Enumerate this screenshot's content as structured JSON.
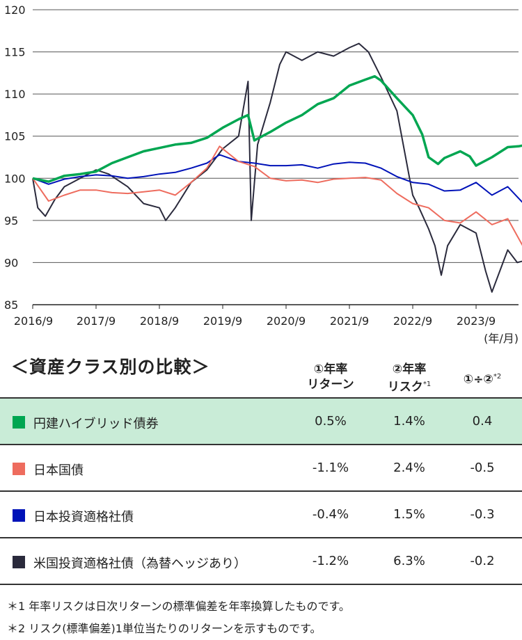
{
  "chart_data": {
    "type": "line",
    "x_ticks": [
      "2016/9",
      "2017/9",
      "2018/9",
      "2019/9",
      "2020/9",
      "2021/9",
      "2022/9",
      "2023/9"
    ],
    "x_unit_label": "(年/月)",
    "y_ticks": [
      85,
      90,
      95,
      100,
      105,
      110,
      115,
      120
    ],
    "ylim": [
      85,
      120
    ],
    "xlim": [
      "2016/9",
      "2024/5"
    ],
    "grid": "horizontal",
    "series": [
      {
        "name": "円建ハイブリッド債券",
        "color": "#00a651",
        "points": [
          [
            0,
            100
          ],
          [
            0.25,
            99.6
          ],
          [
            0.5,
            100.3
          ],
          [
            0.75,
            100.5
          ],
          [
            1,
            100.8
          ],
          [
            1.25,
            101.8
          ],
          [
            1.5,
            102.5
          ],
          [
            1.75,
            103.2
          ],
          [
            2,
            103.6
          ],
          [
            2.25,
            104
          ],
          [
            2.5,
            104.2
          ],
          [
            2.75,
            104.8
          ],
          [
            3,
            106
          ],
          [
            3.25,
            107
          ],
          [
            3.4,
            107.5
          ],
          [
            3.5,
            104.5
          ],
          [
            3.75,
            105.5
          ],
          [
            4,
            106.6
          ],
          [
            4.25,
            107.5
          ],
          [
            4.5,
            108.8
          ],
          [
            4.75,
            109.5
          ],
          [
            5,
            111
          ],
          [
            5.25,
            111.7
          ],
          [
            5.4,
            112.1
          ],
          [
            5.5,
            111.6
          ],
          [
            5.75,
            109.5
          ],
          [
            6,
            107.5
          ],
          [
            6.15,
            105.2
          ],
          [
            6.25,
            102.5
          ],
          [
            6.4,
            101.7
          ],
          [
            6.5,
            102.4
          ],
          [
            6.75,
            103.2
          ],
          [
            6.9,
            102.6
          ],
          [
            7,
            101.5
          ],
          [
            7.25,
            102.5
          ],
          [
            7.5,
            103.7
          ],
          [
            7.67,
            103.8
          ],
          [
            7.75,
            103.9
          ]
        ]
      },
      {
        "name": "日本国債",
        "color": "#ee6c5e",
        "points": [
          [
            0,
            100
          ],
          [
            0.25,
            97.3
          ],
          [
            0.5,
            98
          ],
          [
            0.75,
            98.6
          ],
          [
            1,
            98.6
          ],
          [
            1.25,
            98.3
          ],
          [
            1.5,
            98.2
          ],
          [
            1.75,
            98.4
          ],
          [
            2,
            98.6
          ],
          [
            2.25,
            98
          ],
          [
            2.5,
            99.5
          ],
          [
            2.75,
            101.2
          ],
          [
            2.95,
            103.8
          ],
          [
            3.25,
            102
          ],
          [
            3.5,
            101.4
          ],
          [
            3.75,
            100
          ],
          [
            4,
            99.7
          ],
          [
            4.25,
            99.8
          ],
          [
            4.5,
            99.5
          ],
          [
            4.75,
            99.9
          ],
          [
            5,
            100
          ],
          [
            5.25,
            100.1
          ],
          [
            5.5,
            99.8
          ],
          [
            5.75,
            98.2
          ],
          [
            6,
            97
          ],
          [
            6.25,
            96.5
          ],
          [
            6.5,
            95
          ],
          [
            6.75,
            94.7
          ],
          [
            7,
            96
          ],
          [
            7.25,
            94.5
          ],
          [
            7.5,
            95.2
          ],
          [
            7.75,
            91.8
          ]
        ]
      },
      {
        "name": "日本投資適格社債",
        "color": "#0012b8",
        "points": [
          [
            0,
            100
          ],
          [
            0.25,
            99.3
          ],
          [
            0.5,
            99.9
          ],
          [
            0.75,
            100.2
          ],
          [
            1,
            100.4
          ],
          [
            1.25,
            100.3
          ],
          [
            1.5,
            100
          ],
          [
            1.75,
            100.2
          ],
          [
            2,
            100.5
          ],
          [
            2.25,
            100.7
          ],
          [
            2.5,
            101.2
          ],
          [
            2.75,
            101.8
          ],
          [
            2.95,
            102.8
          ],
          [
            3.25,
            102
          ],
          [
            3.5,
            101.8
          ],
          [
            3.75,
            101.5
          ],
          [
            4,
            101.5
          ],
          [
            4.25,
            101.6
          ],
          [
            4.5,
            101.2
          ],
          [
            4.75,
            101.7
          ],
          [
            5,
            101.9
          ],
          [
            5.25,
            101.8
          ],
          [
            5.5,
            101.2
          ],
          [
            5.75,
            100.2
          ],
          [
            6,
            99.5
          ],
          [
            6.25,
            99.3
          ],
          [
            6.5,
            98.5
          ],
          [
            6.75,
            98.6
          ],
          [
            7,
            99.5
          ],
          [
            7.25,
            98
          ],
          [
            7.5,
            99
          ],
          [
            7.75,
            97
          ]
        ]
      },
      {
        "name": "米国投資適格社債（為替ヘッジあり）",
        "color": "#2a2a3c",
        "points": [
          [
            0,
            100
          ],
          [
            0.08,
            96.5
          ],
          [
            0.2,
            95.5
          ],
          [
            0.35,
            97.5
          ],
          [
            0.5,
            99
          ],
          [
            0.75,
            100
          ],
          [
            1,
            101
          ],
          [
            1.2,
            100.5
          ],
          [
            1.5,
            99
          ],
          [
            1.75,
            97
          ],
          [
            2,
            96.5
          ],
          [
            2.1,
            95
          ],
          [
            2.25,
            96.5
          ],
          [
            2.5,
            99.5
          ],
          [
            2.75,
            101
          ],
          [
            3,
            103.5
          ],
          [
            3.25,
            105
          ],
          [
            3.4,
            111.5
          ],
          [
            3.45,
            95
          ],
          [
            3.55,
            104
          ],
          [
            3.75,
            109
          ],
          [
            3.9,
            113.5
          ],
          [
            4,
            115
          ],
          [
            4.25,
            114
          ],
          [
            4.5,
            115
          ],
          [
            4.75,
            114.5
          ],
          [
            5,
            115.5
          ],
          [
            5.15,
            116
          ],
          [
            5.3,
            115
          ],
          [
            5.5,
            112
          ],
          [
            5.75,
            108
          ],
          [
            6,
            98
          ],
          [
            6.1,
            96.5
          ],
          [
            6.25,
            94
          ],
          [
            6.35,
            92
          ],
          [
            6.45,
            88.5
          ],
          [
            6.55,
            92
          ],
          [
            6.75,
            94.5
          ],
          [
            7,
            93.5
          ],
          [
            7.15,
            89
          ],
          [
            7.25,
            86.5
          ],
          [
            7.5,
            91.5
          ],
          [
            7.65,
            90
          ],
          [
            7.75,
            90.2
          ]
        ]
      }
    ]
  },
  "table": {
    "title": "＜資産クラス別の比較＞",
    "headers": {
      "c1_line1": "①年率",
      "c1_line2": "リターン",
      "c2_line1": "②年率",
      "c2_line2": "リスク",
      "c2_mark": "*1",
      "c3": "①÷②",
      "c3_mark": "*2"
    },
    "rows": [
      {
        "name": "円建ハイブリッド債券",
        "color": "#00a651",
        "return": "0.5%",
        "risk": "1.4%",
        "ratio": "0.4"
      },
      {
        "name": "日本国債",
        "color": "#ee6c5e",
        "return": "-1.1%",
        "risk": "2.4%",
        "ratio": "-0.5"
      },
      {
        "name": "日本投資適格社債",
        "color": "#0012b8",
        "return": "-0.4%",
        "risk": "1.5%",
        "ratio": "-0.3"
      },
      {
        "name": "米国投資適格社債（為替ヘッジあり）",
        "color": "#2a2a3c",
        "return": "-1.2%",
        "risk": "6.3%",
        "ratio": "-0.2"
      }
    ]
  },
  "notes": {
    "n1": "＊1 年率リスクは日次リターンの標準偏差を年率換算したものです。",
    "n2": "＊2 リスク(標準偏差)1単位当たりのリターンを示すものです。"
  }
}
